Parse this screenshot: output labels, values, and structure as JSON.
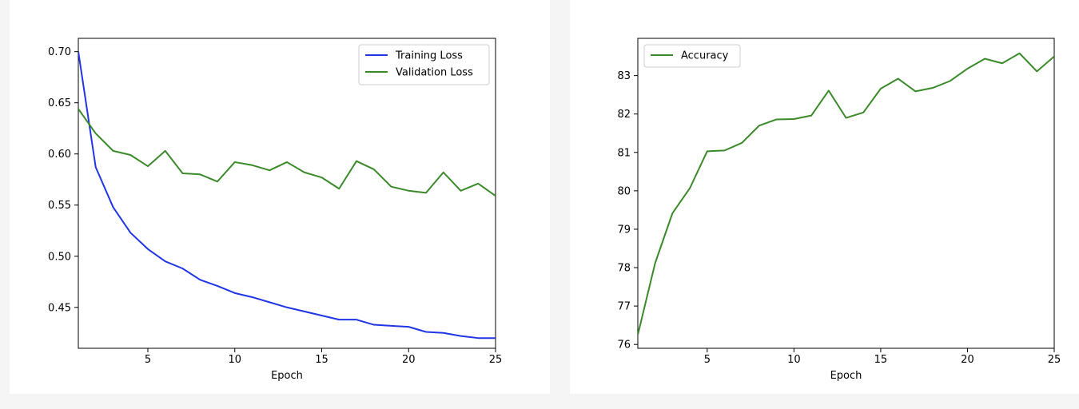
{
  "charts": [
    {
      "type": "line",
      "xlabel": "Epoch",
      "ylabel": "",
      "xlim": [
        1,
        25
      ],
      "ylim": [
        0.41,
        0.713
      ],
      "xticks": [
        5,
        10,
        15,
        20,
        25
      ],
      "yticks": [
        0.45,
        0.5,
        0.55,
        0.6,
        0.65,
        0.7
      ],
      "ytick_labels": [
        "0.45",
        "0.50",
        "0.55",
        "0.60",
        "0.65",
        "0.70"
      ],
      "legend_position": "top-right",
      "series": [
        {
          "name": "Training Loss",
          "color": "#1f35e6",
          "x": [
            1,
            2,
            3,
            4,
            5,
            6,
            7,
            8,
            9,
            10,
            11,
            12,
            13,
            14,
            15,
            16,
            17,
            18,
            19,
            20,
            21,
            22,
            23,
            24,
            25
          ],
          "values": [
            0.7,
            0.587,
            0.548,
            0.523,
            0.507,
            0.495,
            0.488,
            0.477,
            0.471,
            0.464,
            0.46,
            0.455,
            0.45,
            0.446,
            0.442,
            0.438,
            0.438,
            0.433,
            0.432,
            0.431,
            0.426,
            0.425,
            0.422,
            0.42,
            0.42
          ]
        },
        {
          "name": "Validation Loss",
          "color": "#3a8a2a",
          "x": [
            1,
            2,
            3,
            4,
            5,
            6,
            7,
            8,
            9,
            10,
            11,
            12,
            13,
            14,
            15,
            16,
            17,
            18,
            19,
            20,
            21,
            22,
            23,
            24,
            25
          ],
          "values": [
            0.644,
            0.62,
            0.603,
            0.599,
            0.588,
            0.603,
            0.581,
            0.58,
            0.573,
            0.592,
            0.589,
            0.584,
            0.592,
            0.582,
            0.577,
            0.566,
            0.593,
            0.585,
            0.568,
            0.564,
            0.562,
            0.582,
            0.564,
            0.571,
            0.559
          ]
        }
      ]
    },
    {
      "type": "line",
      "xlabel": "Epoch",
      "ylabel": "",
      "xlim": [
        1,
        25
      ],
      "ylim": [
        75.9,
        83.97
      ],
      "xticks": [
        5,
        10,
        15,
        20,
        25
      ],
      "yticks": [
        76,
        77,
        78,
        79,
        80,
        81,
        82,
        83
      ],
      "ytick_labels": [
        "76",
        "77",
        "78",
        "79",
        "80",
        "81",
        "82",
        "83"
      ],
      "legend_position": "top-left",
      "series": [
        {
          "name": "Accuracy",
          "color": "#3a8a2a",
          "x": [
            1,
            2,
            3,
            4,
            5,
            6,
            7,
            8,
            9,
            10,
            11,
            12,
            13,
            14,
            15,
            16,
            17,
            18,
            19,
            20,
            21,
            22,
            23,
            24,
            25
          ],
          "values": [
            76.25,
            78.12,
            79.42,
            80.07,
            81.03,
            81.05,
            81.25,
            81.7,
            81.86,
            81.87,
            81.96,
            82.61,
            81.9,
            82.04,
            82.66,
            82.92,
            82.59,
            82.68,
            82.86,
            83.18,
            83.44,
            83.32,
            83.58,
            83.11,
            83.5
          ]
        }
      ]
    }
  ]
}
